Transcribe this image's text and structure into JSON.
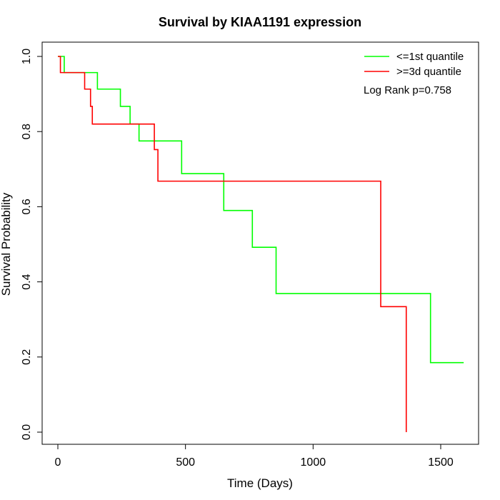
{
  "chart_data": {
    "type": "line",
    "title": "Survival by KIAA1191 expression",
    "xlabel": "Time (Days)",
    "ylabel": "Survival Probability",
    "xlim": [
      0,
      1650
    ],
    "ylim": [
      0,
      1
    ],
    "x_ticks": [
      0,
      500,
      1000,
      1500
    ],
    "y_ticks": [
      0.0,
      0.2,
      0.4,
      0.6,
      0.8,
      1.0
    ],
    "x_tick_labels": [
      "0",
      "500",
      "1000",
      "1500"
    ],
    "y_tick_labels": [
      "0.0",
      "0.2",
      "0.4",
      "0.6",
      "0.8",
      "1.0"
    ],
    "grid": false,
    "legend_position": "top-right",
    "annotation": "Log Rank p=0.758",
    "series": [
      {
        "name": "<=1st quantile",
        "color": "#00FF00",
        "steps": [
          [
            0,
            1.0
          ],
          [
            25,
            0.957
          ],
          [
            155,
            0.913
          ],
          [
            245,
            0.867
          ],
          [
            283,
            0.82
          ],
          [
            318,
            0.775
          ],
          [
            485,
            0.688
          ],
          [
            650,
            0.59
          ],
          [
            762,
            0.492
          ],
          [
            855,
            0.369
          ],
          [
            1460,
            0.185
          ],
          [
            1590,
            0.185
          ]
        ]
      },
      {
        "name": ">=3d quantile",
        "color": "#FF0000",
        "steps": [
          [
            0,
            1.0
          ],
          [
            10,
            0.957
          ],
          [
            105,
            0.913
          ],
          [
            128,
            0.867
          ],
          [
            135,
            0.82
          ],
          [
            378,
            0.752
          ],
          [
            392,
            0.668
          ],
          [
            1265,
            0.334
          ],
          [
            1365,
            0.0
          ]
        ]
      }
    ]
  }
}
